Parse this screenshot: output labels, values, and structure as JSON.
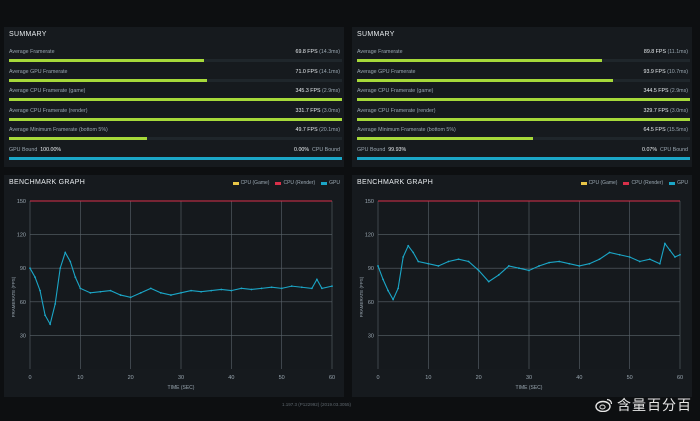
{
  "summaries": [
    {
      "title": "SUMMARY",
      "rows": [
        {
          "label": "Average Framerate",
          "value": "69.8 FPS",
          "ms": "(14.3ms)",
          "fill": 0.585
        },
        {
          "label": "Average GPU Framerate",
          "value": "71.0 FPS",
          "ms": "(14.1ms)",
          "fill": 0.595
        },
        {
          "label": "Average CPU Framerate (game)",
          "value": "345.3 FPS",
          "ms": "(2.9ms)",
          "fill": 1.0
        },
        {
          "label": "Average CPU Framerate (render)",
          "value": "331.7 FPS",
          "ms": "(3.0ms)",
          "fill": 1.0
        },
        {
          "label": "Average Minimum Framerate (bottom 5%)",
          "value": "49.7 FPS",
          "ms": "(20.1ms)",
          "fill": 0.415
        }
      ],
      "bound": {
        "gpu_label": "GPU Bound",
        "gpu_value": "100.00%",
        "cpu_value": "0.00%",
        "cpu_label": "CPU Bound",
        "fill": 1.0
      }
    },
    {
      "title": "SUMMARY",
      "rows": [
        {
          "label": "Average Framerate",
          "value": "89.8 FPS",
          "ms": "(11.1ms)",
          "fill": 0.735
        },
        {
          "label": "Average GPU Framerate",
          "value": "93.9 FPS",
          "ms": "(10.7ms)",
          "fill": 0.77
        },
        {
          "label": "Average CPU Framerate (game)",
          "value": "344.5 FPS",
          "ms": "(2.9ms)",
          "fill": 1.0
        },
        {
          "label": "Average CPU Framerate (render)",
          "value": "329.7 FPS",
          "ms": "(3.0ms)",
          "fill": 1.0
        },
        {
          "label": "Average Minimum Framerate (bottom 5%)",
          "value": "64.5 FPS",
          "ms": "(15.5ms)",
          "fill": 0.53
        }
      ],
      "bound": {
        "gpu_label": "GPU Bound",
        "gpu_value": "99.93%",
        "cpu_value": "0.07%",
        "cpu_label": "CPU Bound",
        "fill": 1.0
      }
    }
  ],
  "benchmarks": [
    {
      "title": "BENCHMARK GRAPH",
      "legend": [
        "CPU (Game)",
        "CPU (Render)",
        "GPU"
      ]
    },
    {
      "title": "BENCHMARK GRAPH",
      "legend": [
        "CPU (Game)",
        "CPU (Render)",
        "GPU"
      ]
    }
  ],
  "colors": {
    "cpu_game": "#e8c547",
    "cpu_render": "#d9304a",
    "gpu": "#1ba6c7",
    "bar": "#a6d93a"
  },
  "footer": "1.197.3 (P122992) (2019.03.3055)",
  "watermark": "含量百分百",
  "chart_data": [
    {
      "type": "scatter",
      "title": "BENCHMARK GRAPH",
      "xlabel": "TIME (SEC)",
      "ylabel": "FRAMERATE (FPS)",
      "xlim": [
        0,
        60
      ],
      "ylim": [
        0,
        150
      ],
      "xticks": [
        0,
        10,
        20,
        30,
        40,
        50,
        60
      ],
      "yticks": [
        30,
        60,
        90,
        120,
        150
      ],
      "legend": "top-right",
      "series": [
        {
          "name": "CPU (Render)",
          "color": "#d9304a",
          "points": [
            [
              0,
              150
            ],
            [
              60,
              150
            ]
          ]
        },
        {
          "name": "GPU",
          "color": "#1ba6c7",
          "points": [
            [
              0,
              90
            ],
            [
              1,
              82
            ],
            [
              2,
              70
            ],
            [
              3,
              48
            ],
            [
              4,
              40
            ],
            [
              5,
              58
            ],
            [
              6,
              90
            ],
            [
              7,
              104
            ],
            [
              8,
              96
            ],
            [
              9,
              82
            ],
            [
              10,
              72
            ],
            [
              12,
              68
            ],
            [
              14,
              69
            ],
            [
              16,
              70
            ],
            [
              18,
              66
            ],
            [
              20,
              64
            ],
            [
              22,
              68
            ],
            [
              24,
              72
            ],
            [
              26,
              68
            ],
            [
              28,
              66
            ],
            [
              30,
              68
            ],
            [
              32,
              70
            ],
            [
              34,
              69
            ],
            [
              36,
              70
            ],
            [
              38,
              71
            ],
            [
              40,
              70
            ],
            [
              42,
              72
            ],
            [
              44,
              71
            ],
            [
              46,
              72
            ],
            [
              48,
              73
            ],
            [
              50,
              72
            ],
            [
              52,
              74
            ],
            [
              54,
              73
            ],
            [
              56,
              72
            ],
            [
              57,
              80
            ],
            [
              58,
              72
            ],
            [
              60,
              74
            ]
          ]
        }
      ]
    },
    {
      "type": "scatter",
      "title": "BENCHMARK GRAPH",
      "xlabel": "TIME (SEC)",
      "ylabel": "FRAMERATE (FPS)",
      "xlim": [
        0,
        60
      ],
      "ylim": [
        0,
        150
      ],
      "xticks": [
        0,
        10,
        20,
        30,
        40,
        50,
        60
      ],
      "yticks": [
        30,
        60,
        90,
        120,
        150
      ],
      "legend": "top-right",
      "series": [
        {
          "name": "CPU (Render)",
          "color": "#d9304a",
          "points": [
            [
              0,
              150
            ],
            [
              60,
              150
            ]
          ]
        },
        {
          "name": "GPU",
          "color": "#1ba6c7",
          "points": [
            [
              0,
              92
            ],
            [
              1,
              80
            ],
            [
              2,
              70
            ],
            [
              3,
              62
            ],
            [
              4,
              72
            ],
            [
              5,
              100
            ],
            [
              6,
              110
            ],
            [
              7,
              104
            ],
            [
              8,
              96
            ],
            [
              10,
              94
            ],
            [
              12,
              92
            ],
            [
              14,
              96
            ],
            [
              16,
              98
            ],
            [
              18,
              96
            ],
            [
              20,
              88
            ],
            [
              22,
              78
            ],
            [
              24,
              84
            ],
            [
              26,
              92
            ],
            [
              28,
              90
            ],
            [
              30,
              88
            ],
            [
              32,
              92
            ],
            [
              34,
              95
            ],
            [
              36,
              96
            ],
            [
              38,
              94
            ],
            [
              40,
              92
            ],
            [
              42,
              94
            ],
            [
              44,
              98
            ],
            [
              46,
              104
            ],
            [
              48,
              102
            ],
            [
              50,
              100
            ],
            [
              52,
              96
            ],
            [
              54,
              98
            ],
            [
              56,
              94
            ],
            [
              57,
              112
            ],
            [
              58,
              106
            ],
            [
              59,
              100
            ],
            [
              60,
              102
            ]
          ]
        }
      ]
    }
  ]
}
